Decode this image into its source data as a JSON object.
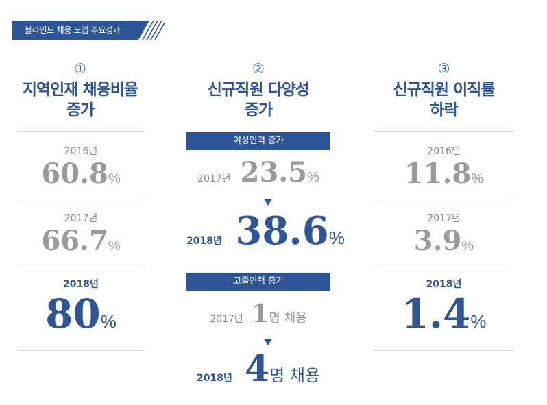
{
  "banner": {
    "label": "블라인드 채용 도입 주요성과"
  },
  "columns": [
    {
      "marker": "①",
      "title_line1": "지역인재 채용비율",
      "title_line2": "증가",
      "rows": [
        {
          "year": "2016년",
          "value": "60.8",
          "unit": "%"
        },
        {
          "year": "2017년",
          "value": "66.7",
          "unit": "%"
        },
        {
          "year": "2018년",
          "value": "80",
          "unit": "%"
        }
      ]
    },
    {
      "marker": "②",
      "title_line1": "신규직원 다양성",
      "title_line2": "증가",
      "sections": [
        {
          "label": "여성인력 증가",
          "before_year": "2017년",
          "before_value": "23.5",
          "before_unit": "%",
          "after_year": "2018년",
          "after_value": "38.6",
          "after_unit": "%"
        },
        {
          "label": "고졸인력 증가",
          "before_year": "2017년",
          "before_value": "1",
          "before_suffix": "명 채용",
          "after_year": "2018년",
          "after_value": "4",
          "after_suffix": "명 채용"
        }
      ]
    },
    {
      "marker": "③",
      "title_line1": "신규직원 이직률",
      "title_line2": "하락",
      "rows": [
        {
          "year": "2016년",
          "value": "11.8",
          "unit": "%"
        },
        {
          "year": "2017년",
          "value": "3.9",
          "unit": "%"
        },
        {
          "year": "2018년",
          "value": "1.4",
          "unit": "%"
        }
      ]
    }
  ],
  "colors": {
    "accent": "#2d5597",
    "muted": "#9a9a9a",
    "rule": "#d9d9d9"
  }
}
